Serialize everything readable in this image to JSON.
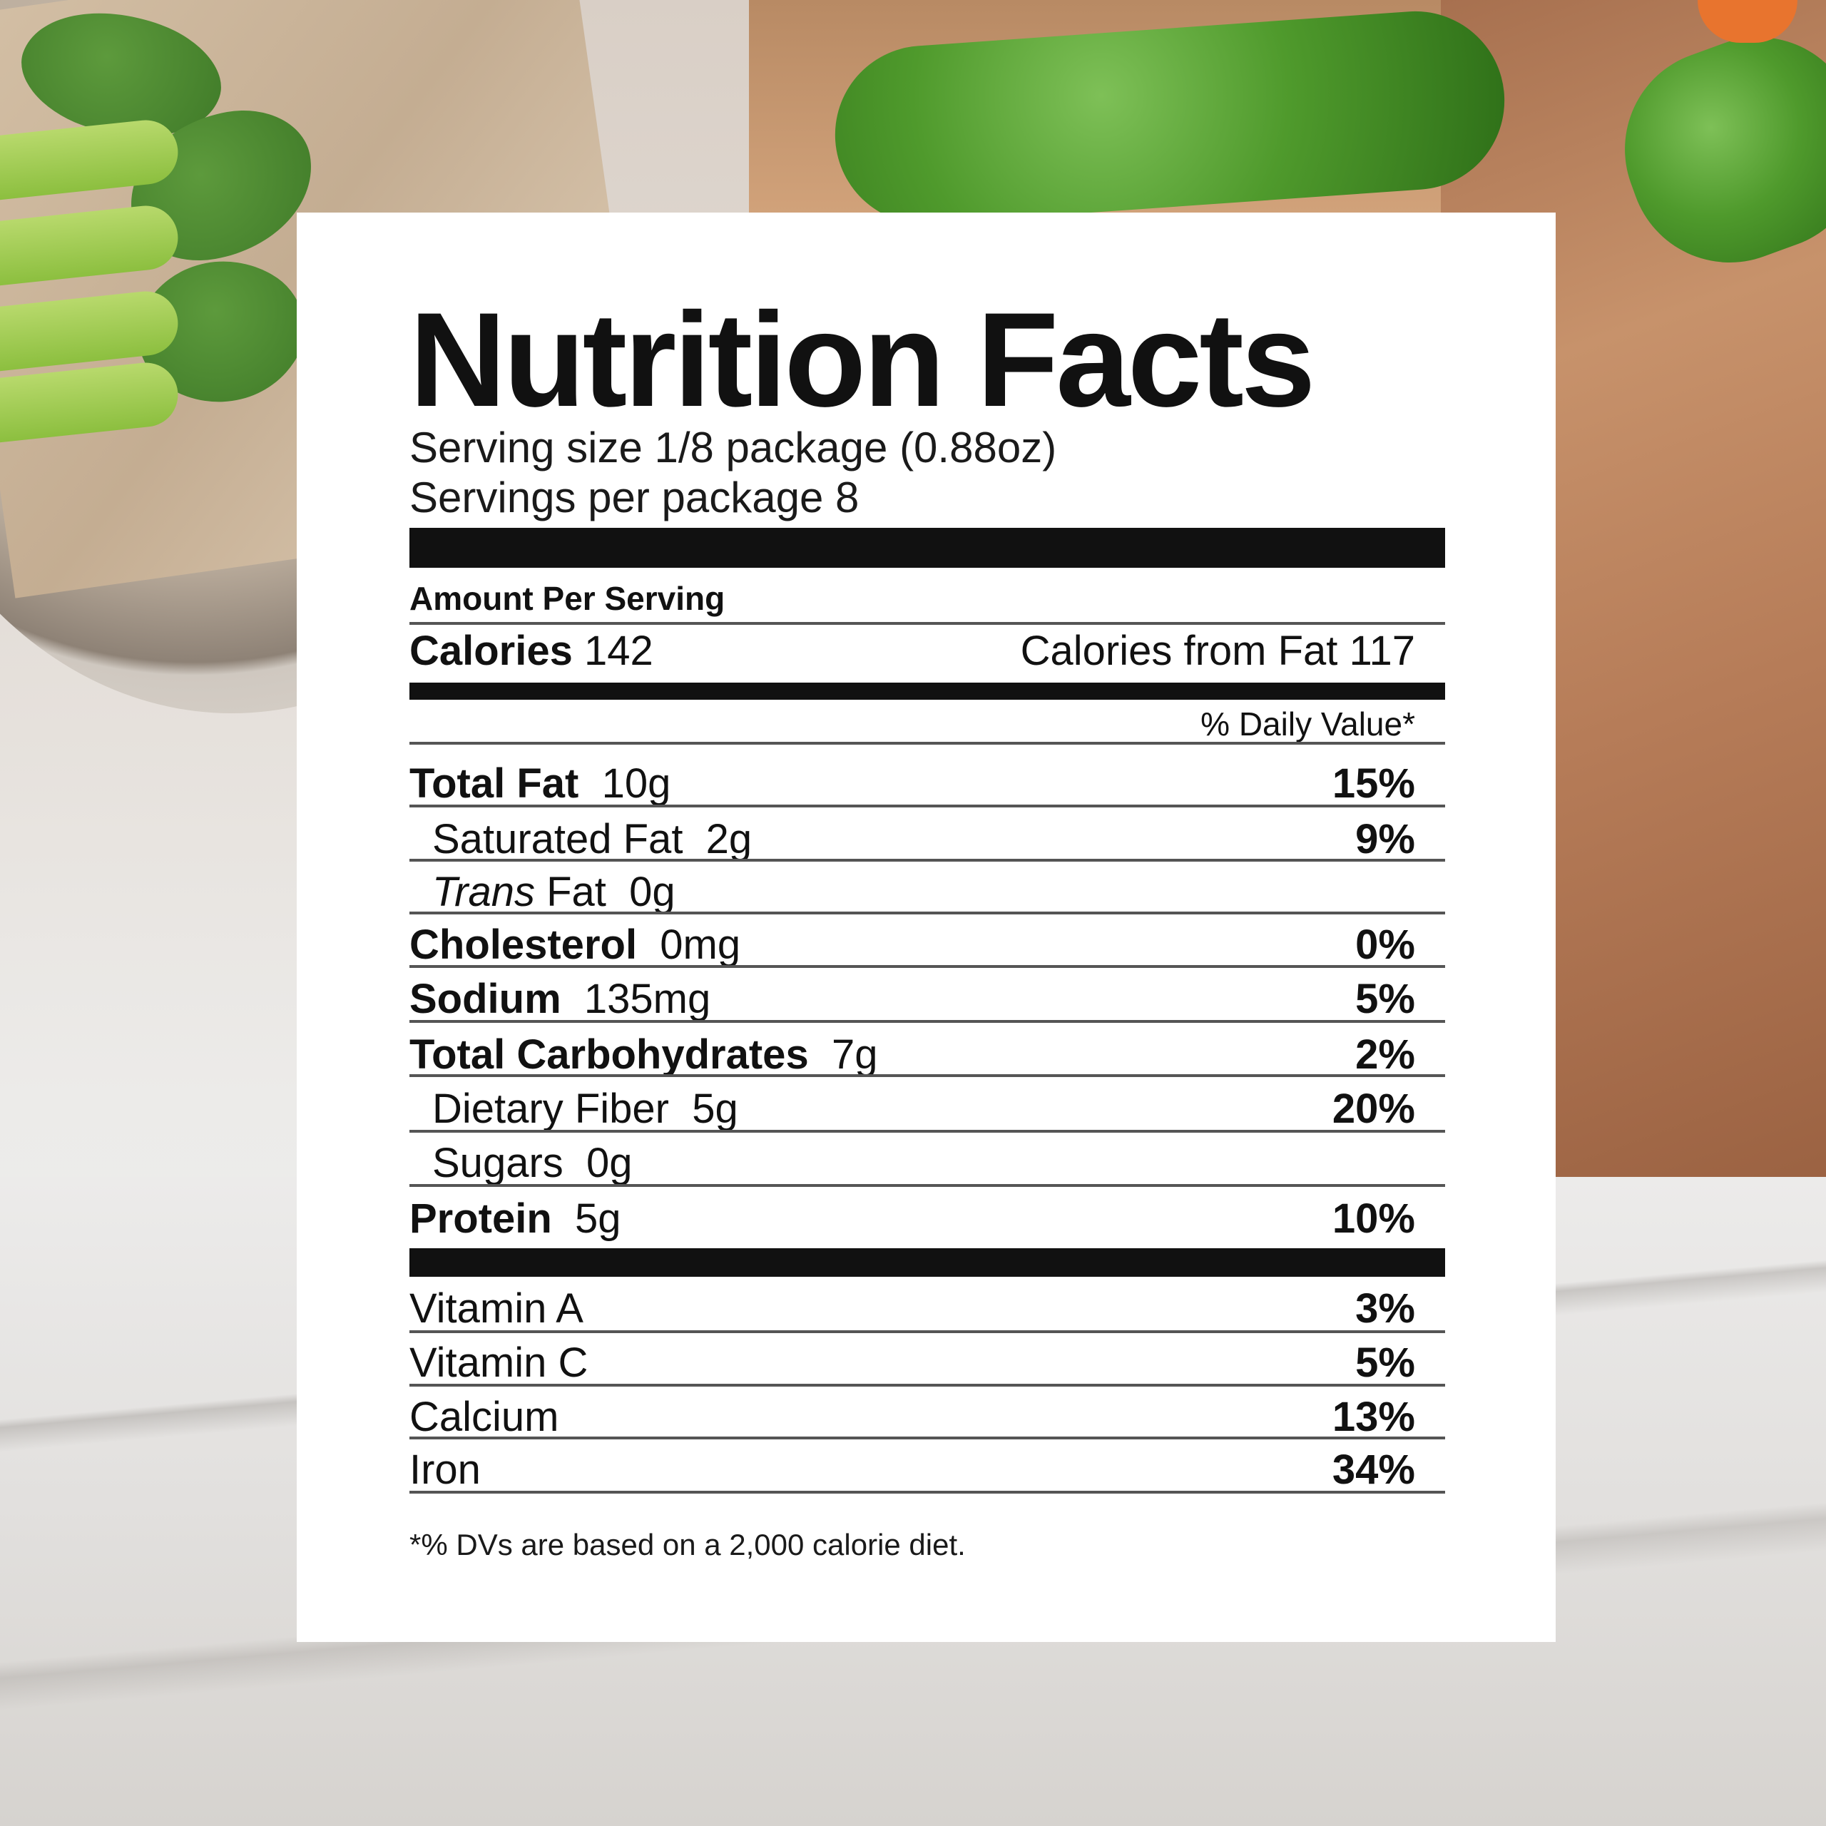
{
  "title": "Nutrition Facts",
  "serving_size": "Serving size 1/8 package (0.88oz)",
  "servings_per": "Servings per package 8",
  "amount_per_serving": "Amount Per Serving",
  "calories_label": "Calories",
  "calories_value": "142",
  "calories_from_fat": "Calories from Fat 117",
  "daily_value_header": "% Daily Value*",
  "nutrients": [
    {
      "name": "Total Fat",
      "amount": "10g",
      "dv": "15%"
    },
    {
      "name": "Saturated Fat",
      "amount": "2g",
      "dv": "9%"
    },
    {
      "name_italic": "Trans",
      "name": "Fat",
      "amount": "0g",
      "dv": ""
    },
    {
      "name": "Cholesterol",
      "amount": "0mg",
      "dv": "0%"
    },
    {
      "name": "Sodium",
      "amount": "135mg",
      "dv": "5%"
    },
    {
      "name": "Total Carbohydrates",
      "amount": "7g",
      "dv": "2%"
    },
    {
      "name": "Dietary Fiber",
      "amount": "5g",
      "dv": "20%"
    },
    {
      "name": "Sugars",
      "amount": "0g",
      "dv": ""
    },
    {
      "name": "Protein",
      "amount": "5g",
      "dv": "10%"
    }
  ],
  "vitamins": [
    {
      "name": "Vitamin A",
      "dv": "3%"
    },
    {
      "name": "Vitamin C",
      "dv": "5%"
    },
    {
      "name": "Calcium",
      "dv": "13%"
    },
    {
      "name": "Iron",
      "dv": "34%"
    }
  ],
  "footnote": "*% DVs are based on a 2,000 calorie diet."
}
